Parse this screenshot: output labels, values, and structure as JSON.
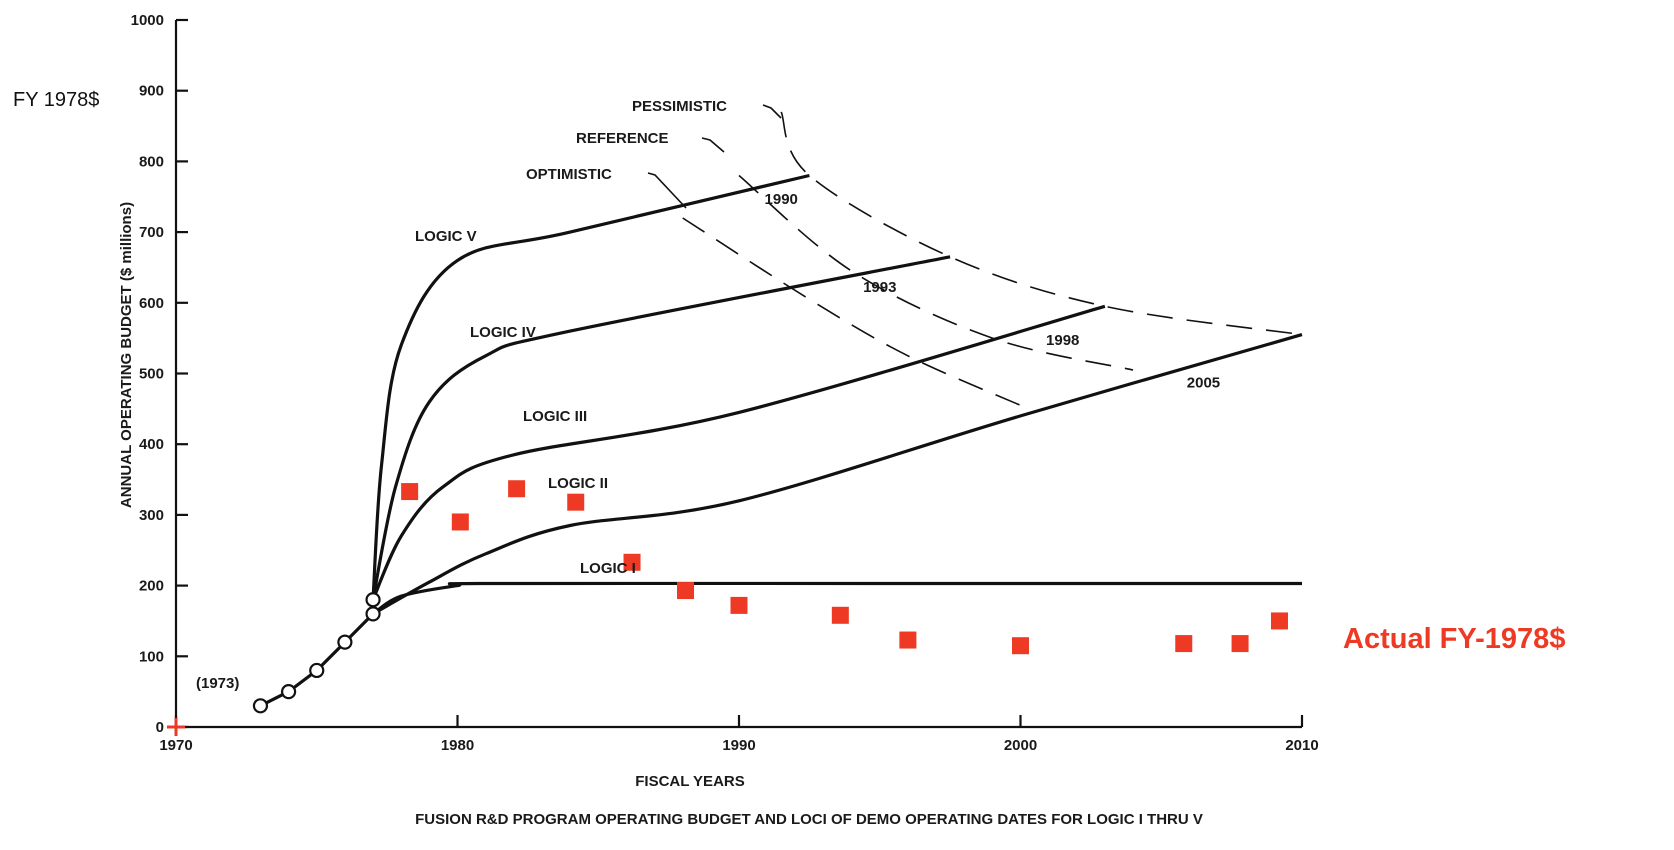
{
  "chart_data": {
    "type": "line",
    "title": "",
    "caption": "FUSION R&D PROGRAM OPERATING BUDGET AND LOCI OF DEMO OPERATING DATES FOR LOGIC I THRU V",
    "xlabel": "FISCAL YEARS",
    "ylabel": "ANNUAL OPERATING BUDGET ($ millions)",
    "unit_note": "FY 1978$",
    "xlim": [
      1970,
      2010
    ],
    "ylim": [
      0,
      1000
    ],
    "x_ticks": [
      1970,
      1980,
      1990,
      2000,
      2010
    ],
    "y_ticks": [
      0,
      100,
      200,
      300,
      400,
      500,
      600,
      700,
      800,
      900,
      1000
    ],
    "grid": false,
    "historical": {
      "label": "(1973)",
      "points": [
        [
          1973,
          30
        ],
        [
          1974,
          50
        ],
        [
          1975,
          80
        ],
        [
          1976,
          120
        ],
        [
          1977,
          160
        ],
        [
          1977,
          180
        ]
      ]
    },
    "series": [
      {
        "name": "LOGIC I",
        "points": [
          [
            1977,
            160
          ],
          [
            1978,
            185
          ],
          [
            1980,
            200
          ],
          [
            1981,
            203
          ],
          [
            1995,
            203
          ],
          [
            2010,
            203
          ]
        ]
      },
      {
        "name": "LOGIC II",
        "points": [
          [
            1977,
            160
          ],
          [
            1979,
            205
          ],
          [
            1981,
            245
          ],
          [
            1984,
            285
          ],
          [
            1990,
            320
          ],
          [
            2000,
            440
          ],
          [
            2010,
            555
          ]
        ]
      },
      {
        "name": "LOGIC III",
        "points": [
          [
            1977,
            180
          ],
          [
            1978,
            270
          ],
          [
            1979.5,
            340
          ],
          [
            1982,
            385
          ],
          [
            1990,
            445
          ],
          [
            2003,
            595
          ]
        ]
      },
      {
        "name": "LOGIC IV",
        "points": [
          [
            1977,
            180
          ],
          [
            1977.8,
            340
          ],
          [
            1979,
            460
          ],
          [
            1981,
            525
          ],
          [
            1984,
            560
          ],
          [
            1997.5,
            665
          ]
        ]
      },
      {
        "name": "LOGIC V",
        "points": [
          [
            1977,
            180
          ],
          [
            1977.3,
            370
          ],
          [
            1978,
            540
          ],
          [
            1980,
            660
          ],
          [
            1984,
            700
          ],
          [
            1992.5,
            780
          ]
        ]
      }
    ],
    "loci": [
      {
        "name": "OPTIMISTIC",
        "points": [
          [
            1988,
            720
          ],
          [
            1992.5,
            605
          ],
          [
            1996,
            525
          ],
          [
            2000,
            455
          ]
        ]
      },
      {
        "name": "REFERENCE",
        "points": [
          [
            1990,
            780
          ],
          [
            1994,
            645
          ],
          [
            1999,
            550
          ],
          [
            2004,
            505
          ]
        ]
      },
      {
        "name": "PESSIMISTIC",
        "points": [
          [
            1991.5,
            870
          ],
          [
            1992.5,
            780
          ],
          [
            1997.5,
            665
          ],
          [
            2003,
            595
          ],
          [
            2010,
            555
          ]
        ]
      }
    ],
    "annotations": [
      {
        "text": "1990",
        "x": 1991.5,
        "y": 740
      },
      {
        "text": "1993",
        "x": 1995,
        "y": 615
      },
      {
        "text": "1998",
        "x": 2001.5,
        "y": 540
      },
      {
        "text": "2005",
        "x": 2006.5,
        "y": 480
      }
    ],
    "actual": {
      "name": "Actual FY-1978$",
      "color": "#ee3a24",
      "points": [
        [
          1978.3,
          333
        ],
        [
          1980.1,
          290
        ],
        [
          1982.1,
          337
        ],
        [
          1984.2,
          318
        ],
        [
          1986.2,
          233
        ],
        [
          1988.1,
          193
        ],
        [
          1990,
          172
        ],
        [
          1993.6,
          158
        ],
        [
          1996,
          123
        ],
        [
          2000,
          115
        ],
        [
          2005.8,
          118
        ],
        [
          2007.8,
          118
        ],
        [
          2009.2,
          150
        ]
      ]
    }
  }
}
